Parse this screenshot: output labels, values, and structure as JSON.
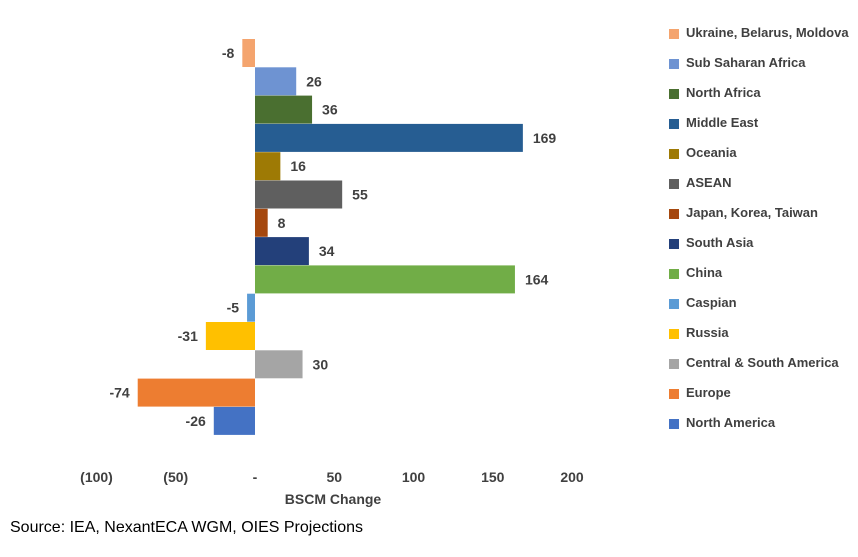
{
  "chart_data": {
    "type": "bar",
    "orientation": "horizontal",
    "title": "",
    "xlabel": "BSCM Change",
    "ylabel": "",
    "xlim": [
      -100,
      200
    ],
    "x_ticks": [
      -100,
      -50,
      0,
      50,
      100,
      150,
      200
    ],
    "x_tick_labels": [
      "(100)",
      "(50)",
      "-",
      "50",
      "100",
      "150",
      "200"
    ],
    "grid": false,
    "legend_position": "right",
    "categories": [
      "Ukraine, Belarus, Moldova",
      "Sub Saharan Africa",
      "North Africa",
      "Middle East",
      "Oceania",
      "ASEAN",
      "Japan, Korea, Taiwan",
      "South Asia",
      "China",
      "Caspian",
      "Russia",
      "Central & South America",
      "Europe",
      "North America"
    ],
    "values": [
      -8,
      26,
      36,
      169,
      16,
      55,
      8,
      34,
      164,
      -5,
      -31,
      30,
      -74,
      -26
    ],
    "value_labels": [
      "-8",
      "26",
      "36",
      "169",
      "16",
      "55",
      "8",
      "34",
      "164",
      "-5",
      "-31",
      "30",
      "-74",
      "-26"
    ],
    "colors": [
      "#F4A46E",
      "#6E93D2",
      "#4A6F30",
      "#265D92",
      "#9E7A05",
      "#5F5F5F",
      "#A5480F",
      "#23407A",
      "#71AD47",
      "#5B9BD5",
      "#FFC000",
      "#A5A5A5",
      "#ED7D31",
      "#4472C4"
    ]
  },
  "source": "Source: IEA, NexantECA WGM, OIES Projections"
}
